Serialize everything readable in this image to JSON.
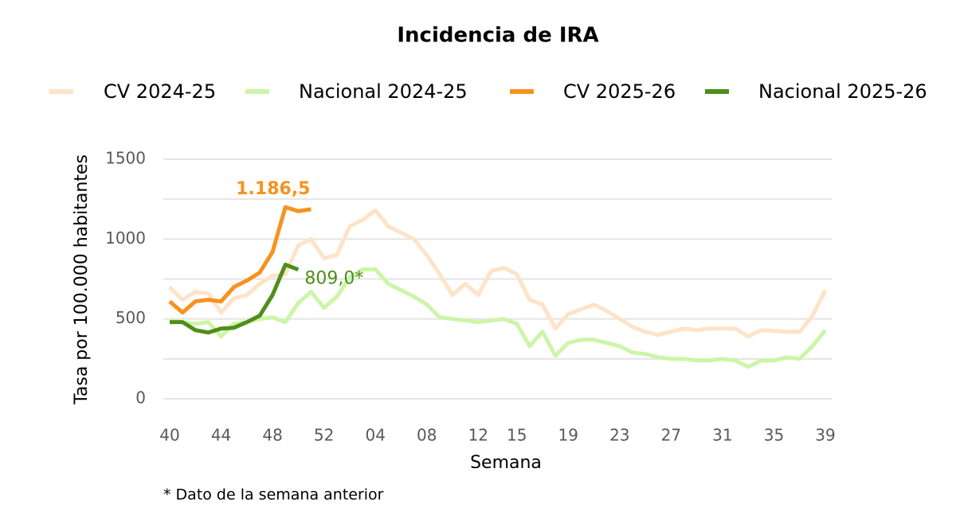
{
  "chart_data": {
    "type": "line",
    "title": "Incidencia de IRA",
    "x_label": "Semana",
    "y_label": "Tasa por 100.000 habitantes",
    "footnote": "* Dato de la semana anterior",
    "categories": [
      "40",
      null,
      null,
      null,
      "44",
      null,
      null,
      null,
      "48",
      null,
      null,
      null,
      "52",
      null,
      null,
      null,
      "04",
      null,
      null,
      null,
      "08",
      null,
      null,
      null,
      "12",
      null,
      null,
      "15",
      null,
      null,
      null,
      "19",
      null,
      null,
      null,
      "23",
      null,
      null,
      null,
      "27",
      null,
      null,
      null,
      "31",
      null,
      null,
      null,
      "35",
      null,
      null,
      null,
      "39"
    ],
    "ylim": [
      0,
      1500
    ],
    "yticks": [
      0,
      500,
      1000,
      1500
    ],
    "minor_gridlines": [
      250,
      750,
      1250
    ],
    "grid": true,
    "series": [
      {
        "name": "CV 2024-25",
        "color": "#fde3c8",
        "values": [
          700,
          620,
          670,
          660,
          540,
          630,
          650,
          720,
          770,
          780,
          960,
          1000,
          880,
          900,
          1080,
          1120,
          1180,
          1080,
          1040,
          1000,
          900,
          780,
          650,
          720,
          650,
          800,
          820,
          780,
          620,
          590,
          440,
          530,
          560,
          590,
          550,
          500,
          450,
          420,
          400,
          420,
          440,
          430,
          440,
          440,
          440,
          390,
          430,
          425,
          420,
          420,
          520,
          680
        ]
      },
      {
        "name": "Nacional 2024-25",
        "color": "#cdf5a9",
        "values": [
          490,
          480,
          470,
          480,
          390,
          470,
          480,
          500,
          510,
          480,
          600,
          670,
          570,
          640,
          760,
          810,
          810,
          720,
          680,
          640,
          590,
          510,
          500,
          490,
          480,
          490,
          500,
          470,
          330,
          420,
          270,
          350,
          370,
          370,
          350,
          330,
          290,
          280,
          260,
          250,
          250,
          240,
          240,
          250,
          240,
          200,
          240,
          240,
          260,
          250,
          330,
          430
        ]
      },
      {
        "name": "CV 2025-26",
        "color": "#f7921e",
        "values": [
          610,
          540,
          610,
          620,
          610,
          700,
          740,
          790,
          920,
          1200,
          1175,
          1186.5,
          null,
          null,
          null,
          null,
          null,
          null,
          null,
          null,
          null,
          null,
          null,
          null,
          null,
          null,
          null,
          null,
          null,
          null,
          null,
          null,
          null,
          null,
          null,
          null,
          null,
          null,
          null,
          null,
          null,
          null,
          null,
          null,
          null,
          null,
          null,
          null,
          null,
          null,
          null,
          null
        ],
        "value_labels": [
          null,
          null,
          null,
          null,
          null,
          null,
          null,
          null,
          null,
          null,
          null,
          "1.186,5",
          null,
          null,
          null,
          null,
          null,
          null,
          null,
          null,
          null,
          null,
          null,
          null,
          null,
          null,
          null,
          null,
          null,
          null,
          null,
          null,
          null,
          null,
          null,
          null,
          null,
          null,
          null,
          null,
          null,
          null,
          null,
          null,
          null,
          null,
          null,
          null,
          null,
          null,
          null,
          null
        ]
      },
      {
        "name": "Nacional 2025-26",
        "color": "#4e8f1a",
        "values": [
          480,
          480,
          430,
          415,
          440,
          445,
          480,
          520,
          650,
          840,
          809,
          null,
          null,
          null,
          null,
          null,
          null,
          null,
          null,
          null,
          null,
          null,
          null,
          null,
          null,
          null,
          null,
          null,
          null,
          null,
          null,
          null,
          null,
          null,
          null,
          null,
          null,
          null,
          null,
          null,
          null,
          null,
          null,
          null,
          null,
          null,
          null,
          null,
          null,
          null,
          null,
          null
        ],
        "value_labels": [
          null,
          null,
          null,
          null,
          null,
          null,
          null,
          null,
          null,
          null,
          "809,0*",
          null,
          null,
          null,
          null,
          null,
          null,
          null,
          null,
          null,
          null,
          null,
          null,
          null,
          null,
          null,
          null,
          null,
          null,
          null,
          null,
          null,
          null,
          null,
          null,
          null,
          null,
          null,
          null,
          null,
          null,
          null,
          null,
          null,
          null,
          null,
          null,
          null,
          null,
          null,
          null,
          null
        ]
      }
    ]
  }
}
